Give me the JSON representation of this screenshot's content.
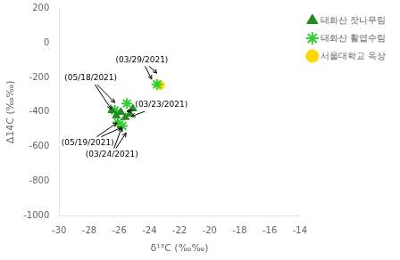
{
  "chart_data": {
    "type": "scatter",
    "xlabel": "δ¹³C (‰‰)",
    "ylabel": "Δ14C (‰‰)",
    "xlim": [
      -30,
      -14
    ],
    "ylim": [
      -1000,
      200
    ],
    "xticks": [
      -30,
      -28,
      -26,
      -24,
      -22,
      -20,
      -18,
      -16,
      -14
    ],
    "yticks": [
      -1000,
      -800,
      -600,
      -400,
      -200,
      0,
      200
    ],
    "grid": false,
    "legend": "right",
    "series": [
      {
        "name": "태화산 잣나무림",
        "color": "#228B22",
        "marker": "triangle",
        "x": [
          -26.5,
          -26.2,
          -25.9,
          -25.6,
          -25.3,
          -25.1
        ],
        "values": [
          -390,
          -420,
          -400,
          -430,
          -410,
          -380
        ]
      },
      {
        "name": "태화산 활엽수림",
        "color": "#32CD32",
        "marker": "star",
        "x": [
          -26.3,
          -26.1,
          -25.8,
          -25.5,
          -23.5
        ],
        "values": [
          -390,
          -460,
          -480,
          -350,
          -240
        ]
      },
      {
        "name": "서울대학교 옥상",
        "color": "#FFD700",
        "marker": "circle",
        "x": [
          -23.3
        ],
        "values": [
          -245
        ]
      }
    ],
    "annotations": [
      {
        "text": "(03/29/2021)",
        "x": -24.5,
        "y": -100,
        "arrows": [
          {
            "x": -23.5,
            "y": -175
          },
          {
            "x": -23.85,
            "y": -210
          }
        ]
      },
      {
        "text": "(05/18/2021)",
        "x": -27.9,
        "y": -205,
        "arrows": [
          {
            "x": -26.3,
            "y": -345
          },
          {
            "x": -26.55,
            "y": -382
          }
        ]
      },
      {
        "text": "(03/23/2021)",
        "x": -23.2,
        "y": -360,
        "arrows": [
          {
            "x": -25.5,
            "y": -395
          },
          {
            "x": -25.2,
            "y": -425
          }
        ]
      },
      {
        "text": "(05/19/2021)",
        "x": -28.1,
        "y": -578,
        "arrows": [
          {
            "x": -26.15,
            "y": -462
          },
          {
            "x": -25.85,
            "y": -488
          }
        ]
      },
      {
        "text": "(03/24/2021)",
        "x": -26.5,
        "y": -645,
        "arrows": [
          {
            "x": -25.85,
            "y": -490
          },
          {
            "x": -25.55,
            "y": -520
          }
        ]
      }
    ]
  }
}
